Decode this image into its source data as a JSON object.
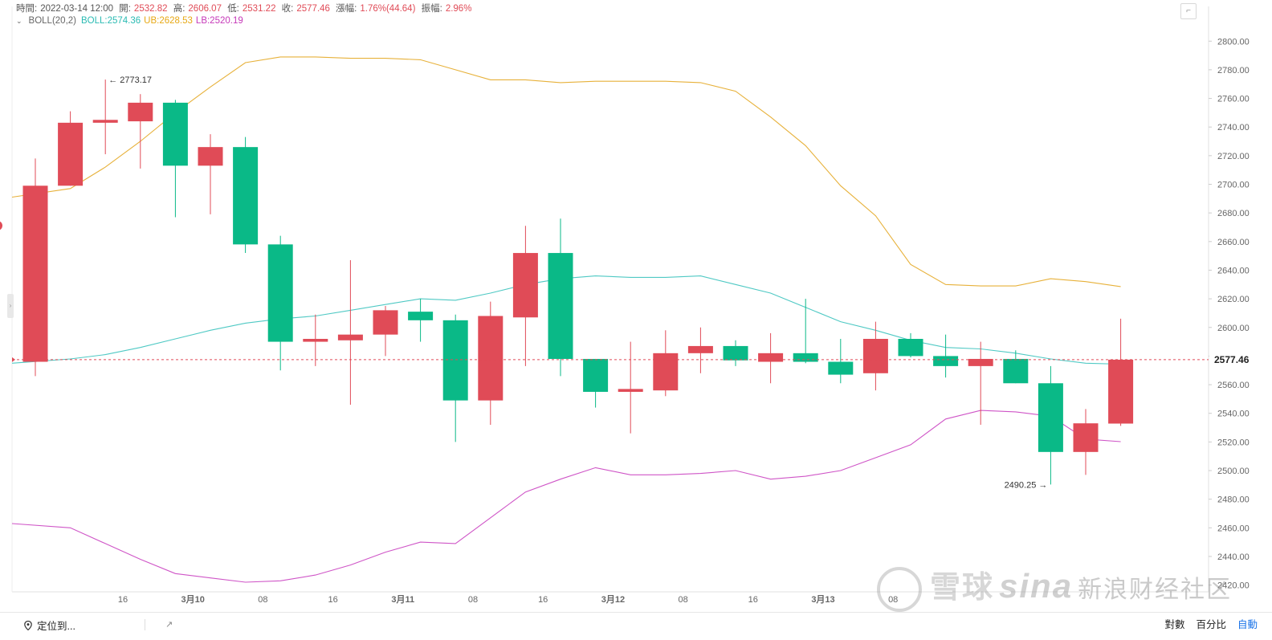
{
  "info": {
    "time_label": "時間:",
    "time": "2022-03-14 12:00",
    "open_label": "開:",
    "open": "2532.82",
    "high_label": "高:",
    "high": "2606.07",
    "low_label": "低:",
    "low": "2531.22",
    "close_label": "收:",
    "close": "2577.46",
    "change_label": "漲幅:",
    "change": "1.76%(44.64)",
    "amp_label": "振幅:",
    "amp": "2.96%"
  },
  "boll": {
    "chevron": "⌄",
    "name": "BOLL(20,2)",
    "mid": "BOLL:2574.36",
    "ub": "UB:2628.53",
    "lb": "LB:2520.19"
  },
  "bottom": {
    "locate": "定位到...",
    "scale_log": "對數",
    "scale_pct": "百分比",
    "scale_auto": "自動"
  },
  "watermark": {
    "brand1": "雪球",
    "brand2": "sina",
    "text": "新浪财经社区"
  },
  "colors": {
    "up": "#e04b57",
    "down": "#0ab987",
    "mid": "#4fc9c4",
    "ub": "#e7b13a",
    "lb": "#cf55c7"
  },
  "chart_data": {
    "type": "candlestick",
    "ylim": [
      2404,
      2808
    ],
    "y_ticks": [
      2420,
      2440,
      2460,
      2480,
      2500,
      2520,
      2540,
      2560,
      2580,
      2600,
      2620,
      2640,
      2660,
      2680,
      2700,
      2720,
      2740,
      2760,
      2780,
      2800
    ],
    "x_labels": [
      {
        "label": "16",
        "index": 2.5
      },
      {
        "label": "3月10",
        "index": 4.5
      },
      {
        "label": "08",
        "index": 6.5
      },
      {
        "label": "16",
        "index": 8.5
      },
      {
        "label": "3月11",
        "index": 10.5
      },
      {
        "label": "08",
        "index": 12.5
      },
      {
        "label": "16",
        "index": 14.5
      },
      {
        "label": "3月12",
        "index": 16.5
      },
      {
        "label": "08",
        "index": 18.5
      },
      {
        "label": "16",
        "index": 20.5
      },
      {
        "label": "3月13",
        "index": 22.5
      },
      {
        "label": "08",
        "index": 24.5
      }
    ],
    "candles": [
      {
        "o": 2576,
        "h": 2718,
        "l": 2566,
        "c": 2699
      },
      {
        "o": 2699,
        "h": 2751,
        "l": 2699,
        "c": 2743
      },
      {
        "o": 2743,
        "h": 2773.17,
        "l": 2721,
        "c": 2745
      },
      {
        "o": 2744,
        "h": 2763,
        "l": 2711,
        "c": 2757
      },
      {
        "o": 2757,
        "h": 2759,
        "l": 2677,
        "c": 2713
      },
      {
        "o": 2713,
        "h": 2735,
        "l": 2679,
        "c": 2726
      },
      {
        "o": 2726,
        "h": 2733,
        "l": 2652,
        "c": 2658
      },
      {
        "o": 2658,
        "h": 2664,
        "l": 2570,
        "c": 2590
      },
      {
        "o": 2590,
        "h": 2609,
        "l": 2573,
        "c": 2592
      },
      {
        "o": 2591,
        "h": 2647,
        "l": 2546,
        "c": 2595
      },
      {
        "o": 2595,
        "h": 2615,
        "l": 2580,
        "c": 2612
      },
      {
        "o": 2611,
        "h": 2620,
        "l": 2590,
        "c": 2605
      },
      {
        "o": 2605,
        "h": 2609,
        "l": 2520,
        "c": 2549
      },
      {
        "o": 2549,
        "h": 2618,
        "l": 2532,
        "c": 2608
      },
      {
        "o": 2607,
        "h": 2671,
        "l": 2573,
        "c": 2652
      },
      {
        "o": 2652,
        "h": 2676,
        "l": 2566,
        "c": 2578
      },
      {
        "o": 2578,
        "h": 2578,
        "l": 2544,
        "c": 2555
      },
      {
        "o": 2555,
        "h": 2590,
        "l": 2526,
        "c": 2557
      },
      {
        "o": 2556,
        "h": 2598,
        "l": 2552,
        "c": 2582
      },
      {
        "o": 2582,
        "h": 2600,
        "l": 2568,
        "c": 2587
      },
      {
        "o": 2587,
        "h": 2591,
        "l": 2573,
        "c": 2577
      },
      {
        "o": 2576,
        "h": 2596,
        "l": 2561,
        "c": 2582
      },
      {
        "o": 2582,
        "h": 2620,
        "l": 2575,
        "c": 2576
      },
      {
        "o": 2576,
        "h": 2592,
        "l": 2561,
        "c": 2567
      },
      {
        "o": 2568,
        "h": 2604,
        "l": 2556,
        "c": 2592
      },
      {
        "o": 2592,
        "h": 2596,
        "l": 2579,
        "c": 2580
      },
      {
        "o": 2580,
        "h": 2595,
        "l": 2565,
        "c": 2573
      },
      {
        "o": 2573,
        "h": 2590,
        "l": 2532,
        "c": 2578
      },
      {
        "o": 2578,
        "h": 2584,
        "l": 2561,
        "c": 2561
      },
      {
        "o": 2561,
        "h": 2573,
        "l": 2490.25,
        "c": 2513
      },
      {
        "o": 2513,
        "h": 2543,
        "l": 2497,
        "c": 2533
      },
      {
        "o": 2532.82,
        "h": 2606.07,
        "l": 2531.22,
        "c": 2577.46
      }
    ],
    "boll_mid": [
      2575,
      2578,
      2581,
      2586,
      2592,
      2598,
      2603,
      2606,
      2608,
      2612,
      2616,
      2620,
      2619,
      2624,
      2630,
      2634,
      2636,
      2635,
      2635,
      2636,
      2630,
      2624,
      2614,
      2604,
      2598,
      2591,
      2586,
      2585,
      2582,
      2578,
      2575,
      2574.36
    ],
    "boll_ub": [
      2691,
      2697,
      2712,
      2730,
      2750,
      2768,
      2785,
      2789,
      2789,
      2788,
      2788,
      2787,
      2780,
      2773,
      2773,
      2771,
      2772,
      2772,
      2772,
      2771,
      2765,
      2747,
      2727,
      2699,
      2678,
      2644,
      2630,
      2629,
      2629,
      2634,
      2632,
      2628.53
    ],
    "boll_lb": [
      2463,
      2460,
      2449,
      2438,
      2428,
      2425,
      2422,
      2423,
      2427,
      2434,
      2443,
      2450,
      2449,
      2467,
      2485,
      2494,
      2502,
      2497,
      2497,
      2498,
      2500,
      2494,
      2496,
      2500,
      2509,
      2518,
      2536,
      2542,
      2541,
      2538,
      2522,
      2520.19
    ],
    "current_price": 2577.46,
    "current_label": "2577.46",
    "high_label": "← 2773.17",
    "high_index": 2,
    "low_label": "2490.25 →",
    "low_index": 29
  }
}
